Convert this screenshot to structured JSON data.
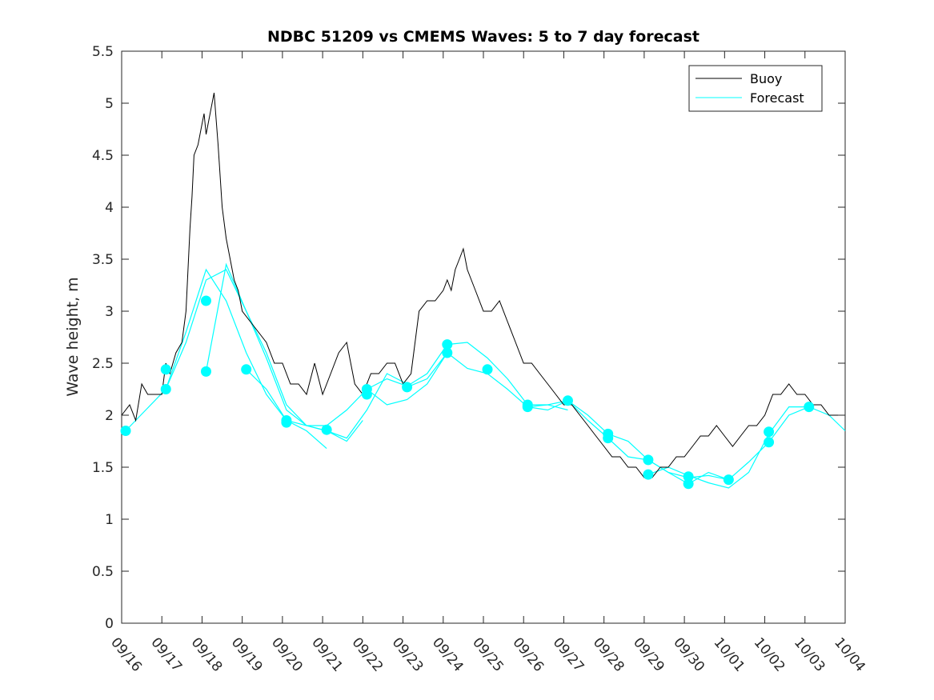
{
  "chart_data": {
    "type": "line",
    "title": "NDBC 51209 vs CMEMS Waves: 5 to 7 day forecast",
    "xlabel": "",
    "ylabel": "Wave height, m",
    "xlim": [
      0,
      18
    ],
    "ylim": [
      0,
      5.5
    ],
    "yticks": [
      0,
      0.5,
      1,
      1.5,
      2,
      2.5,
      3,
      3.5,
      4,
      4.5,
      5,
      5.5
    ],
    "ytick_labels": [
      "0",
      "0.5",
      "1",
      "1.5",
      "2",
      "2.5",
      "3",
      "3.5",
      "4",
      "4.5",
      "5",
      "5.5"
    ],
    "xticks": [
      0,
      1,
      2,
      3,
      4,
      5,
      6,
      7,
      8,
      9,
      10,
      11,
      12,
      13,
      14,
      15,
      16,
      17,
      18
    ],
    "xtick_labels": [
      "09/16",
      "09/17",
      "09/18",
      "09/19",
      "09/20",
      "09/21",
      "09/22",
      "09/23",
      "09/24",
      "09/25",
      "09/26",
      "09/27",
      "09/28",
      "09/29",
      "09/30",
      "10/01",
      "10/02",
      "10/03",
      "10/04"
    ],
    "legend": {
      "position": "top-right",
      "entries": [
        "Buoy",
        "Forecast"
      ]
    },
    "colors": {
      "buoy": "#000000",
      "forecast": "#00ffff"
    },
    "buoy": {
      "name": "Buoy",
      "x": [
        0,
        0.2,
        0.35,
        0.5,
        0.65,
        0.8,
        1.0,
        1.1,
        1.2,
        1.35,
        1.5,
        1.6,
        1.7,
        1.75,
        1.8,
        1.9,
        2.0,
        2.05,
        2.1,
        2.2,
        2.3,
        2.4,
        2.5,
        2.6,
        2.7,
        2.8,
        2.9,
        3.0,
        3.2,
        3.4,
        3.6,
        3.8,
        4.0,
        4.2,
        4.4,
        4.6,
        4.8,
        5.0,
        5.2,
        5.4,
        5.6,
        5.8,
        6.0,
        6.2,
        6.4,
        6.6,
        6.8,
        7.0,
        7.2,
        7.4,
        7.6,
        7.8,
        8.0,
        8.1,
        8.2,
        8.3,
        8.4,
        8.5,
        8.6,
        8.8,
        9.0,
        9.2,
        9.4,
        9.6,
        9.8,
        10.0,
        10.2,
        10.4,
        10.6,
        10.8,
        11.0,
        11.2,
        11.4,
        11.6,
        11.8,
        12.0,
        12.2,
        12.4,
        12.6,
        12.8,
        13.0,
        13.2,
        13.4,
        13.6,
        13.8,
        14.0,
        14.2,
        14.4,
        14.6,
        14.8,
        15.0,
        15.2,
        15.4,
        15.6,
        15.8,
        16.0,
        16.2,
        16.4,
        16.6,
        16.8,
        17.0,
        17.2,
        17.4,
        17.6,
        17.8,
        18.0
      ],
      "values": [
        2.0,
        2.1,
        1.95,
        2.3,
        2.2,
        2.2,
        2.2,
        2.5,
        2.4,
        2.6,
        2.7,
        3.0,
        3.8,
        4.1,
        4.5,
        4.6,
        4.8,
        4.9,
        4.7,
        4.9,
        5.1,
        4.6,
        4.0,
        3.7,
        3.5,
        3.3,
        3.2,
        3.0,
        2.9,
        2.8,
        2.7,
        2.5,
        2.5,
        2.3,
        2.3,
        2.2,
        2.5,
        2.2,
        2.4,
        2.6,
        2.7,
        2.3,
        2.2,
        2.4,
        2.4,
        2.5,
        2.5,
        2.3,
        2.4,
        3.0,
        3.1,
        3.1,
        3.2,
        3.3,
        3.2,
        3.4,
        3.5,
        3.6,
        3.4,
        3.2,
        3.0,
        3.0,
        3.1,
        2.9,
        2.7,
        2.5,
        2.5,
        2.4,
        2.3,
        2.2,
        2.1,
        2.1,
        2.0,
        1.9,
        1.8,
        1.7,
        1.6,
        1.6,
        1.5,
        1.5,
        1.4,
        1.4,
        1.5,
        1.5,
        1.6,
        1.6,
        1.7,
        1.8,
        1.8,
        1.9,
        1.8,
        1.7,
        1.8,
        1.9,
        1.9,
        2.0,
        2.2,
        2.2,
        2.3,
        2.2,
        2.2,
        2.1,
        2.1,
        2.0,
        2.0,
        2.0
      ]
    },
    "forecast_series": [
      {
        "name": "Forecast 1",
        "x": [
          0.1,
          0.6,
          1.1,
          1.6,
          2.1,
          2.6,
          3.1,
          3.6,
          4.1,
          4.6,
          5.1
        ],
        "values": [
          1.85,
          2.05,
          2.25,
          2.8,
          3.4,
          3.1,
          2.6,
          2.2,
          1.95,
          1.85,
          1.68
        ]
      },
      {
        "name": "Forecast 2",
        "x": [
          1.1,
          1.6,
          2.1,
          2.6,
          3.1,
          3.6,
          4.1,
          4.6,
          5.1,
          5.6,
          6.0
        ],
        "values": [
          2.25,
          2.7,
          3.3,
          3.4,
          3.0,
          2.6,
          2.1,
          1.9,
          1.85,
          1.75,
          1.95
        ]
      },
      {
        "name": "Forecast 3",
        "x": [
          2.1,
          2.6,
          3.1,
          3.6,
          4.1,
          4.6,
          5.1,
          5.6,
          6.1,
          6.6,
          7.1
        ],
        "values": [
          2.42,
          3.45,
          3.0,
          2.55,
          2.05,
          1.9,
          1.85,
          1.78,
          2.05,
          2.4,
          2.3
        ]
      },
      {
        "name": "Forecast 4",
        "x": [
          3.1,
          3.6,
          4.1,
          4.6,
          5.1,
          5.6,
          6.1,
          6.6,
          7.1,
          7.6,
          8.1
        ],
        "values": [
          2.44,
          2.25,
          1.95,
          1.9,
          1.9,
          2.05,
          2.25,
          2.1,
          2.15,
          2.3,
          2.6
        ]
      },
      {
        "name": "Forecast 5",
        "x": [
          6.1,
          6.6,
          7.1,
          7.6,
          8.1,
          8.6,
          9.1,
          9.6,
          10.1,
          10.6,
          11.1
        ],
        "values": [
          2.25,
          2.35,
          2.28,
          2.4,
          2.68,
          2.7,
          2.55,
          2.35,
          2.1,
          2.1,
          2.05
        ]
      },
      {
        "name": "Forecast 6",
        "x": [
          7.1,
          7.6,
          8.1,
          8.6,
          9.1,
          9.6,
          10.1,
          10.6,
          11.1,
          11.6,
          12.1
        ],
        "values": [
          2.27,
          2.35,
          2.6,
          2.45,
          2.4,
          2.25,
          2.08,
          2.1,
          2.14,
          2.0,
          1.82
        ]
      },
      {
        "name": "Forecast 7",
        "x": [
          10.1,
          10.6,
          11.1,
          11.6,
          12.1,
          12.6,
          13.1,
          13.6,
          14.1,
          14.6,
          15.1
        ],
        "values": [
          2.08,
          2.05,
          2.14,
          1.95,
          1.78,
          1.6,
          1.57,
          1.45,
          1.4,
          1.42,
          1.38
        ]
      },
      {
        "name": "Forecast 8",
        "x": [
          12.1,
          12.6,
          13.1,
          13.6,
          14.1,
          14.6,
          15.1,
          15.6,
          16.1,
          16.6,
          17.1
        ],
        "values": [
          1.82,
          1.75,
          1.57,
          1.45,
          1.34,
          1.45,
          1.38,
          1.55,
          1.74,
          2.0,
          2.08
        ]
      },
      {
        "name": "Forecast 9",
        "x": [
          13.1,
          13.6,
          14.1,
          14.6,
          15.1,
          15.6,
          16.1,
          16.6,
          17.1,
          17.6,
          18.0
        ],
        "values": [
          1.43,
          1.5,
          1.42,
          1.35,
          1.3,
          1.45,
          1.82,
          2.08,
          2.08,
          2.0,
          1.85
        ]
      }
    ],
    "forecast_markers": {
      "x": [
        0.1,
        1.1,
        1.1,
        2.1,
        2.1,
        3.1,
        4.1,
        4.1,
        5.1,
        6.1,
        6.1,
        7.1,
        8.1,
        8.1,
        9.1,
        10.1,
        10.1,
        11.1,
        12.1,
        12.1,
        13.1,
        13.1,
        14.1,
        14.1,
        15.1,
        16.1,
        16.1,
        17.1
      ],
      "values": [
        1.85,
        2.25,
        2.44,
        2.42,
        3.1,
        2.44,
        1.93,
        1.95,
        1.86,
        2.2,
        2.25,
        2.27,
        2.68,
        2.6,
        2.44,
        2.08,
        2.1,
        2.14,
        1.82,
        1.78,
        1.57,
        1.43,
        1.34,
        1.41,
        1.38,
        1.74,
        1.84,
        2.08
      ]
    }
  }
}
